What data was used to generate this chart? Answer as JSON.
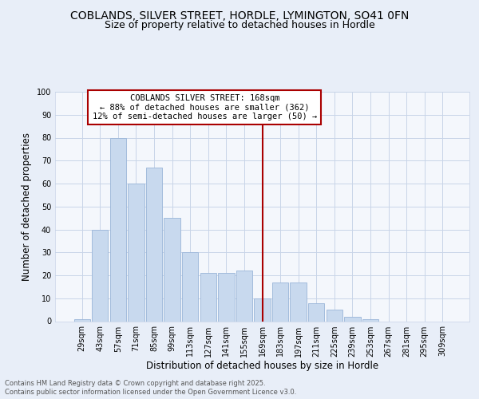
{
  "title_line1": "COBLANDS, SILVER STREET, HORDLE, LYMINGTON, SO41 0FN",
  "title_line2": "Size of property relative to detached houses in Hordle",
  "xlabel": "Distribution of detached houses by size in Hordle",
  "ylabel": "Number of detached properties",
  "footnote_line1": "Contains HM Land Registry data © Crown copyright and database right 2025.",
  "footnote_line2": "Contains public sector information licensed under the Open Government Licence v3.0.",
  "annotation_title": "COBLANDS SILVER STREET: 168sqm",
  "annotation_line1": "← 88% of detached houses are smaller (362)",
  "annotation_line2": "12% of semi-detached houses are larger (50) →",
  "bar_labels": [
    "29sqm",
    "43sqm",
    "57sqm",
    "71sqm",
    "85sqm",
    "99sqm",
    "113sqm",
    "127sqm",
    "141sqm",
    "155sqm",
    "169sqm",
    "183sqm",
    "197sqm",
    "211sqm",
    "225sqm",
    "239sqm",
    "253sqm",
    "267sqm",
    "281sqm",
    "295sqm",
    "309sqm"
  ],
  "bar_values": [
    1,
    40,
    80,
    60,
    67,
    45,
    30,
    21,
    21,
    22,
    10,
    17,
    17,
    8,
    5,
    2,
    1,
    0,
    0,
    0,
    0
  ],
  "bar_color_normal": "#c8d9ee",
  "vline_x_index": 10,
  "vline_color": "#aa0000",
  "annotation_box_color": "#aa0000",
  "ylim": [
    0,
    100
  ],
  "yticks": [
    0,
    10,
    20,
    30,
    40,
    50,
    60,
    70,
    80,
    90,
    100
  ],
  "background_color": "#e8eef8",
  "plot_background": "#f4f7fc",
  "grid_color": "#c8d4e8",
  "title_fontsize": 10,
  "subtitle_fontsize": 9,
  "axis_label_fontsize": 8.5,
  "tick_fontsize": 7,
  "annotation_fontsize": 7.5
}
